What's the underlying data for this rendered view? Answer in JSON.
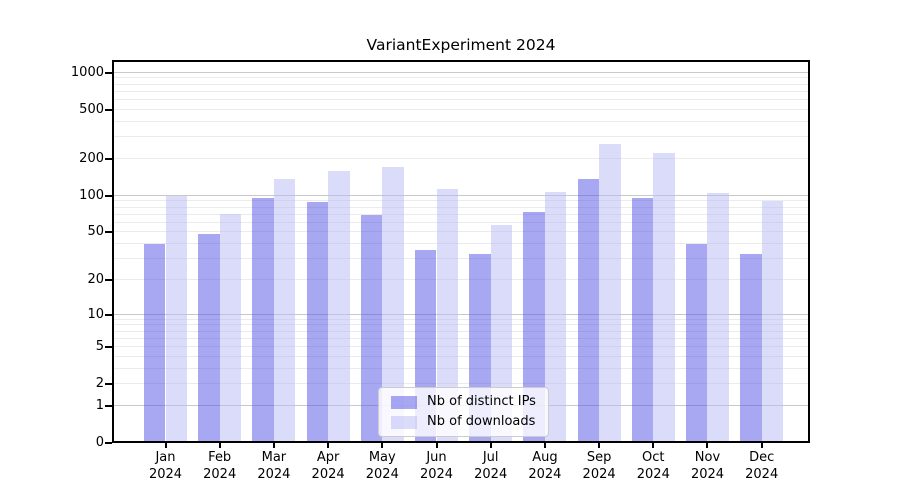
{
  "chart_data": {
    "type": "bar",
    "title": "VariantExperiment 2024",
    "categories": [
      "Jan 2024",
      "Feb 2024",
      "Mar 2024",
      "Apr 2024",
      "May 2024",
      "Jun 2024",
      "Jul 2024",
      "Aug 2024",
      "Sep 2024",
      "Oct 2024",
      "Nov 2024",
      "Dec 2024"
    ],
    "series": [
      {
        "name": "Nb of distinct IPs",
        "values": [
          40,
          48,
          96,
          89,
          69,
          36,
          33,
          73,
          136,
          96,
          40,
          33
        ]
      },
      {
        "name": "Nb of downloads",
        "values": [
          100,
          71,
          138,
          160,
          173,
          113,
          57,
          108,
          265,
          225,
          105,
          90
        ]
      }
    ],
    "xlabel": "",
    "ylabel": "",
    "yscale": "log1p",
    "yticks": [
      0,
      1,
      2,
      5,
      10,
      20,
      50,
      100,
      200,
      500,
      1000
    ],
    "ylim": [
      0,
      1270
    ],
    "grid": true,
    "legend_position": "lower center"
  },
  "x_axis": {
    "labels": [
      [
        "Jan",
        "2024"
      ],
      [
        "Feb",
        "2024"
      ],
      [
        "Mar",
        "2024"
      ],
      [
        "Apr",
        "2024"
      ],
      [
        "May",
        "2024"
      ],
      [
        "Jun",
        "2024"
      ],
      [
        "Jul",
        "2024"
      ],
      [
        "Aug",
        "2024"
      ],
      [
        "Sep",
        "2024"
      ],
      [
        "Oct",
        "2024"
      ],
      [
        "Nov",
        "2024"
      ],
      [
        "Dec",
        "2024"
      ]
    ]
  },
  "legend": {
    "items": [
      {
        "label": "Nb of distinct IPs"
      },
      {
        "label": "Nb of downloads"
      }
    ]
  },
  "colors": {
    "ips_bar": "rgba(80,80,230,0.5)",
    "downloads_bar": "rgba(183,183,245,0.5)",
    "major_grid": "#c8c8c8",
    "minor_grid": "#ebebeb",
    "axis": "#000000",
    "legend_border": "#cccccc",
    "legend_bg": "rgba(255,255,255,0.8)"
  }
}
